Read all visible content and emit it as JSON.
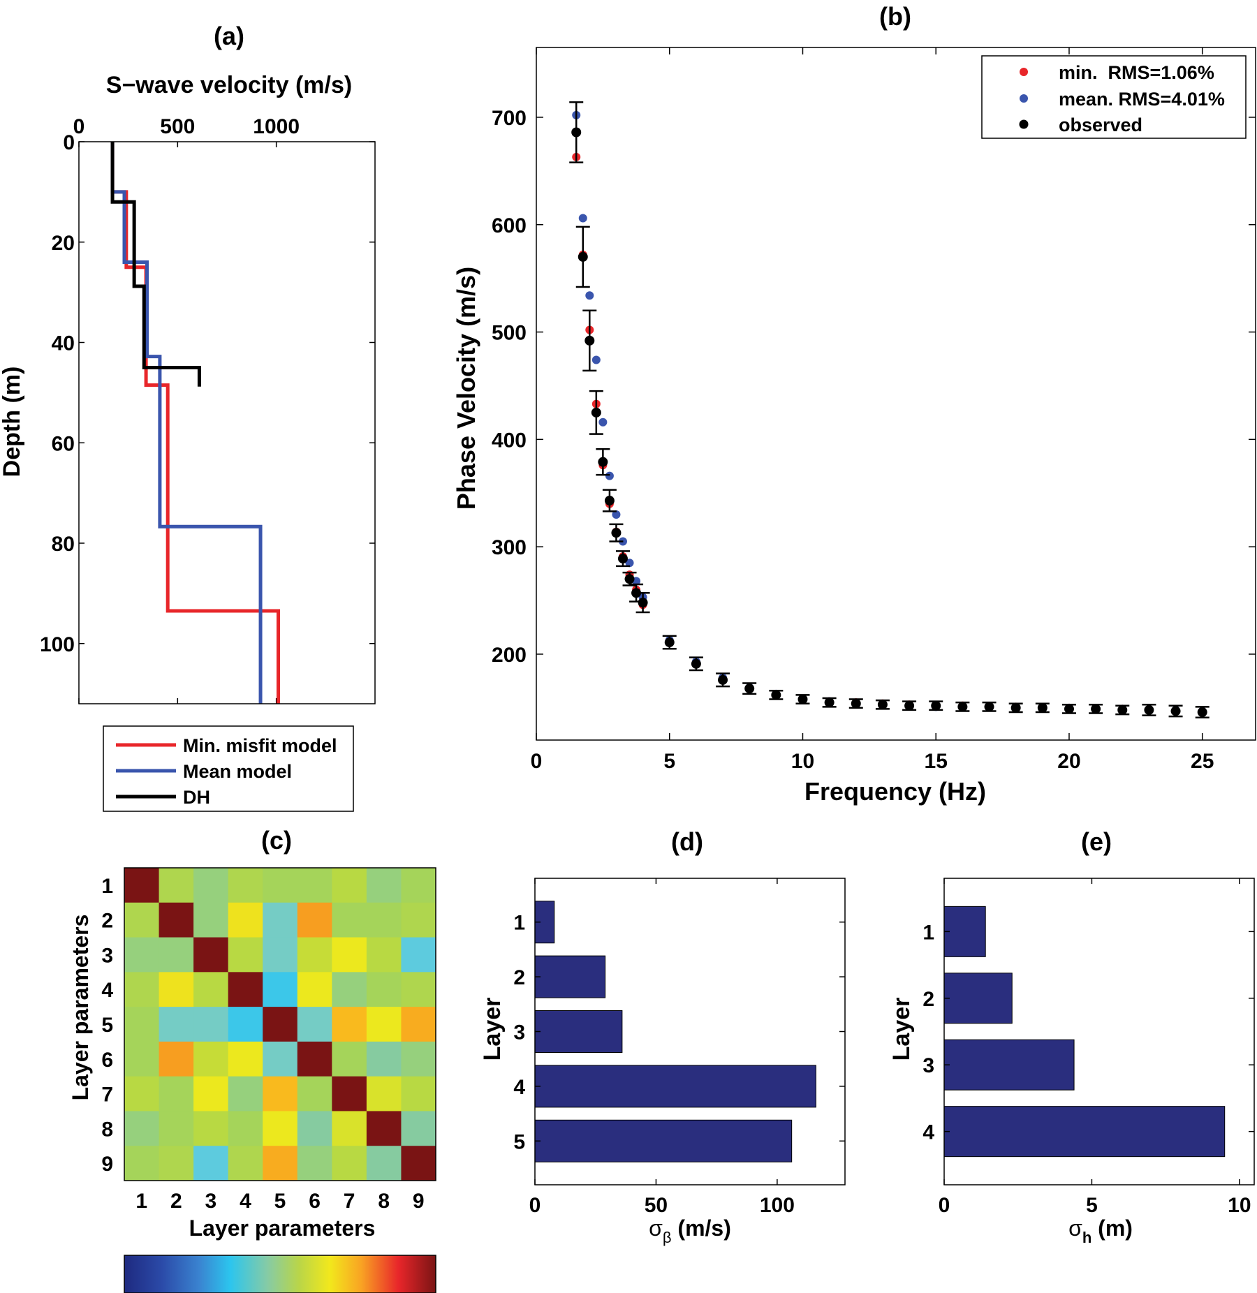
{
  "chart_data": [
    {
      "panel": "(a)",
      "type": "line",
      "title": "(a)",
      "xlabel": "S−wave velocity (m/s)",
      "ylabel": "Depth (m)",
      "xlim": [
        0,
        1500
      ],
      "ylim": [
        0,
        112
      ],
      "x_reversed": false,
      "y_reversed": true,
      "xticks": [
        "0",
        "500",
        "1000"
      ],
      "yticks": [
        "0",
        "20",
        "40",
        "60",
        "80",
        "100"
      ],
      "legend_position": "below",
      "series": [
        {
          "name": "Min. misfit model",
          "color": "#e8262a",
          "velocity": [
            170,
            240,
            340,
            450,
            1010
          ],
          "layer_tops": [
            0,
            10,
            25,
            48.5,
            93.5
          ]
        },
        {
          "name": "Mean model",
          "color": "#3a55ad",
          "velocity": [
            170,
            230,
            345,
            410,
            920
          ],
          "layer_tops": [
            0,
            10,
            24,
            42.8,
            76.7
          ]
        },
        {
          "name": "DH",
          "color": "#000000",
          "velocity": [
            170,
            280,
            330,
            610
          ],
          "layer_tops": [
            0,
            12,
            28.8,
            45
          ],
          "bottom": 48.8
        }
      ]
    },
    {
      "panel": "(b)",
      "type": "scatter",
      "title": "(b)",
      "xlabel": "Frequency (Hz)",
      "ylabel": "Phase Velocity (m/s)",
      "xlim": [
        0,
        27
      ],
      "ylim": [
        120,
        765
      ],
      "xticks": [
        "0",
        "5",
        "10",
        "15",
        "20",
        "25"
      ],
      "yticks": [
        "200",
        "300",
        "400",
        "500",
        "600",
        "700"
      ],
      "legend_position": "top-right",
      "series": [
        {
          "name": "min.  RMS=1.06%",
          "color": "#e8262a",
          "x": [
            1.5,
            1.75,
            2,
            2.25,
            2.5,
            2.75,
            3,
            3.25,
            3.5,
            3.75,
            4,
            5,
            6,
            7,
            8,
            9,
            10,
            11,
            12,
            13,
            14,
            15,
            16,
            17,
            18,
            19,
            20,
            21,
            22,
            23,
            24,
            25
          ],
          "y": [
            663,
            572,
            502,
            433,
            376,
            340,
            314,
            291,
            274,
            260,
            246,
            212,
            192,
            177,
            168,
            162,
            158,
            156,
            155,
            154,
            153,
            152,
            152,
            151,
            151,
            150,
            150,
            149,
            149,
            148,
            147,
            147
          ]
        },
        {
          "name": "mean. RMS=4.01%",
          "color": "#3a55ad",
          "x": [
            1.5,
            1.75,
            2,
            2.25,
            2.5,
            2.75,
            3,
            3.25,
            3.5,
            3.75,
            4,
            5,
            6,
            7,
            8,
            9,
            10,
            11,
            12,
            13,
            14,
            15,
            16,
            17,
            18,
            19,
            20,
            21,
            22,
            23,
            24,
            25
          ],
          "y": [
            702,
            606,
            534,
            474,
            416,
            366,
            330,
            305,
            285,
            268,
            253,
            213,
            193,
            178,
            169,
            163,
            158,
            156,
            154,
            153,
            152,
            151,
            151,
            151,
            150,
            150,
            150,
            149,
            149,
            148,
            148,
            147
          ]
        },
        {
          "name": "observed",
          "color": "#000000",
          "x": [
            1.5,
            1.75,
            2,
            2.25,
            2.5,
            2.75,
            3,
            3.25,
            3.5,
            3.75,
            4,
            5,
            6,
            7,
            8,
            9,
            10,
            11,
            12,
            13,
            14,
            15,
            16,
            17,
            18,
            19,
            20,
            21,
            22,
            23,
            24,
            25
          ],
          "y": [
            686,
            570,
            492,
            425,
            379,
            343,
            313,
            289,
            270,
            257,
            248,
            211,
            191,
            176,
            168,
            162,
            158,
            155,
            154,
            153,
            152,
            152,
            151,
            151,
            150,
            150,
            149,
            149,
            148,
            148,
            147,
            146
          ],
          "error": [
            28,
            28,
            28,
            20,
            12,
            10,
            8,
            7,
            6,
            8,
            9,
            6,
            6,
            6,
            5,
            4,
            4,
            4,
            4,
            4,
            4,
            4,
            4,
            4,
            4,
            4,
            4,
            4,
            4,
            5,
            5,
            5
          ]
        }
      ]
    },
    {
      "panel": "(c)",
      "type": "heatmap",
      "title": "(c)",
      "xlabel": "Layer parameters",
      "ylabel": "Layer parameters",
      "xticks": [
        "1",
        "2",
        "3",
        "4",
        "5",
        "6",
        "7",
        "8",
        "9"
      ],
      "yticks": [
        "1",
        "2",
        "3",
        "4",
        "5",
        "6",
        "7",
        "8",
        "9"
      ],
      "colorbar": "jet, bottom, no tick labels",
      "values": [
        [
          1.0,
          0.1,
          0.0,
          0.1,
          0.05,
          0.05,
          0.15,
          0.0,
          0.05
        ],
        [
          0.1,
          1.0,
          0.0,
          0.32,
          -0.15,
          0.55,
          0.05,
          0.05,
          0.1
        ],
        [
          0.0,
          0.0,
          1.0,
          0.15,
          -0.15,
          0.2,
          0.3,
          0.15,
          -0.25
        ],
        [
          0.1,
          0.32,
          0.15,
          1.0,
          -0.35,
          0.3,
          0.0,
          0.05,
          0.1
        ],
        [
          0.05,
          -0.15,
          -0.15,
          -0.35,
          1.0,
          -0.15,
          0.45,
          0.3,
          0.5
        ],
        [
          0.05,
          0.55,
          0.2,
          0.3,
          -0.15,
          1.0,
          0.05,
          -0.05,
          0.0
        ],
        [
          0.15,
          0.05,
          0.3,
          0.0,
          0.45,
          0.05,
          1.0,
          0.25,
          0.15
        ],
        [
          0.0,
          0.05,
          0.15,
          0.05,
          0.3,
          -0.05,
          0.25,
          1.0,
          -0.05
        ],
        [
          0.05,
          0.1,
          -0.25,
          0.1,
          0.5,
          0.0,
          0.15,
          -0.05,
          1.0
        ]
      ]
    },
    {
      "panel": "(d)",
      "type": "bar",
      "orientation": "horizontal",
      "title": "(d)",
      "xlabel": "σβ (m/s)",
      "ylabel": "Layer",
      "xlim": [
        0,
        128
      ],
      "xticks": [
        "0",
        "50",
        "100"
      ],
      "categories": [
        "1",
        "2",
        "3",
        "4",
        "5"
      ],
      "values": [
        8,
        29,
        36,
        116,
        106
      ],
      "color": "#2a2e7e"
    },
    {
      "panel": "(e)",
      "type": "bar",
      "orientation": "horizontal",
      "title": "(e)",
      "xlabel": "σh (m)",
      "ylabel": "Layer",
      "xlim": [
        0,
        10.5
      ],
      "xticks": [
        "0",
        "5",
        "10"
      ],
      "categories": [
        "1",
        "2",
        "3",
        "4"
      ],
      "values": [
        1.4,
        2.3,
        4.4,
        9.5
      ],
      "color": "#2a2e7e"
    }
  ],
  "labels": {
    "a_title": "(a)",
    "a_xlabel": "S−wave velocity (m/s)",
    "a_ylabel": "Depth (m)",
    "legend_a": [
      "Min. misfit model",
      "Mean model",
      "DH"
    ],
    "b_title": "(b)",
    "b_xlabel": "Frequency (Hz)",
    "b_ylabel": "Phase Velocity (m/s)",
    "legend_b": [
      "min.  RMS=1.06%",
      "mean. RMS=4.01%",
      "observed"
    ],
    "c_title": "(c)",
    "c_xlabel": "Layer parameters",
    "c_ylabel": "Layer parameters",
    "d_title": "(d)",
    "d_ylabel": "Layer",
    "d_xlabel_sigma": "σ",
    "d_xlabel_sub": "β",
    "d_xlabel_unit": " (m/s)",
    "e_title": "(e)",
    "e_ylabel": "Layer",
    "e_xlabel_sigma": "σ",
    "e_xlabel_sub": "h",
    "e_xlabel_unit": " (m)"
  }
}
